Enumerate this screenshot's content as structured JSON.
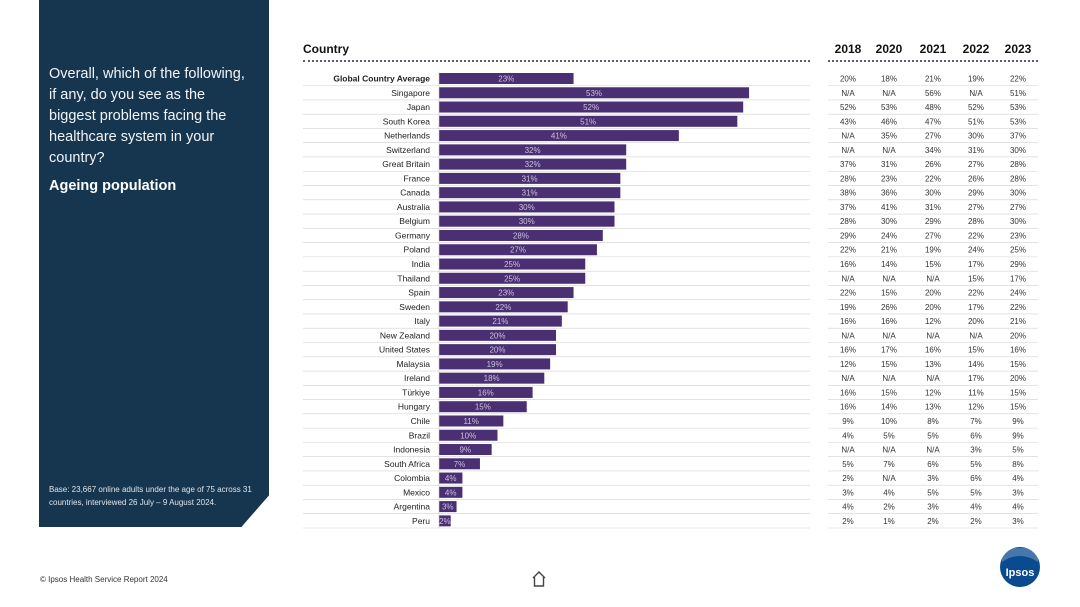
{
  "sidebar": {
    "question": "Overall, which of the following, if any, do you see as the biggest problems facing the healthcare system in your country?",
    "topic": "Ageing population",
    "base": "Base: 23,667 online adults under the age of 75 across 31 countries, interviewed 26 July – 9 August 2024."
  },
  "footer": {
    "source": "© Ipsos Health Service Report 2024",
    "logo": "Ipsos"
  },
  "icons": {
    "home": "home-icon"
  },
  "colors": {
    "sidebar": "#163650",
    "bar": "#4b2f73",
    "bar_text": "#c9c2db"
  },
  "chart_data": {
    "type": "bar",
    "orientation": "horizontal",
    "title": "Ageing population",
    "column_header": "Country",
    "categories": [
      "Global Country Average",
      "Singapore",
      "Japan",
      "South Korea",
      "Netherlands",
      "Switzerland",
      "Great Britain",
      "France",
      "Canada",
      "Australia",
      "Belgium",
      "Germany",
      "Poland",
      "India",
      "Thailand",
      "Spain",
      "Sweden",
      "Italy",
      "New Zealand",
      "United States",
      "Malaysia",
      "Ireland",
      "Türkiye",
      "Hungary",
      "Chile",
      "Brazil",
      "Indonesia",
      "South Africa",
      "Colombia",
      "Mexico",
      "Argentina",
      "Peru"
    ],
    "values": [
      23,
      53,
      52,
      51,
      41,
      32,
      32,
      31,
      31,
      30,
      30,
      28,
      27,
      25,
      25,
      23,
      22,
      21,
      20,
      20,
      19,
      18,
      16,
      15,
      11,
      10,
      9,
      7,
      4,
      4,
      3,
      2
    ],
    "value_labels": [
      "23%",
      "53%",
      "52%",
      "51%",
      "41%",
      "32%",
      "32%",
      "31%",
      "31%",
      "30%",
      "30%",
      "28%",
      "27%",
      "25%",
      "25%",
      "23%",
      "22%",
      "21%",
      "20%",
      "20%",
      "19%",
      "18%",
      "16%",
      "15%",
      "11%",
      "10%",
      "9%",
      "7%",
      "4%",
      "4%",
      "3%",
      "2%"
    ],
    "xlim": [
      0,
      100
    ],
    "unit": "%",
    "table": {
      "columns": [
        "2018",
        "2020",
        "2021",
        "2022",
        "2023"
      ],
      "rows": [
        [
          "20%",
          "18%",
          "21%",
          "19%",
          "22%"
        ],
        [
          "N/A",
          "N/A",
          "56%",
          "N/A",
          "51%"
        ],
        [
          "52%",
          "53%",
          "48%",
          "52%",
          "53%"
        ],
        [
          "43%",
          "46%",
          "47%",
          "51%",
          "53%"
        ],
        [
          "N/A",
          "35%",
          "27%",
          "30%",
          "37%"
        ],
        [
          "N/A",
          "N/A",
          "34%",
          "31%",
          "30%"
        ],
        [
          "37%",
          "31%",
          "26%",
          "27%",
          "28%"
        ],
        [
          "28%",
          "23%",
          "22%",
          "26%",
          "28%"
        ],
        [
          "38%",
          "36%",
          "30%",
          "29%",
          "30%"
        ],
        [
          "37%",
          "41%",
          "31%",
          "27%",
          "27%"
        ],
        [
          "28%",
          "30%",
          "29%",
          "28%",
          "30%"
        ],
        [
          "29%",
          "24%",
          "27%",
          "22%",
          "23%"
        ],
        [
          "22%",
          "21%",
          "19%",
          "24%",
          "25%"
        ],
        [
          "16%",
          "14%",
          "15%",
          "17%",
          "29%"
        ],
        [
          "N/A",
          "N/A",
          "N/A",
          "15%",
          "17%"
        ],
        [
          "22%",
          "15%",
          "20%",
          "22%",
          "24%"
        ],
        [
          "19%",
          "26%",
          "20%",
          "17%",
          "22%"
        ],
        [
          "16%",
          "16%",
          "12%",
          "20%",
          "21%"
        ],
        [
          "N/A",
          "N/A",
          "N/A",
          "N/A",
          "20%"
        ],
        [
          "16%",
          "17%",
          "16%",
          "15%",
          "16%"
        ],
        [
          "12%",
          "15%",
          "13%",
          "14%",
          "15%"
        ],
        [
          "N/A",
          "N/A",
          "N/A",
          "17%",
          "20%"
        ],
        [
          "16%",
          "15%",
          "12%",
          "11%",
          "15%"
        ],
        [
          "16%",
          "14%",
          "13%",
          "12%",
          "15%"
        ],
        [
          "9%",
          "10%",
          "8%",
          "7%",
          "9%"
        ],
        [
          "4%",
          "5%",
          "5%",
          "6%",
          "9%"
        ],
        [
          "N/A",
          "N/A",
          "N/A",
          "3%",
          "5%"
        ],
        [
          "5%",
          "7%",
          "6%",
          "5%",
          "8%"
        ],
        [
          "2%",
          "N/A",
          "3%",
          "6%",
          "4%"
        ],
        [
          "3%",
          "4%",
          "5%",
          "5%",
          "3%"
        ],
        [
          "4%",
          "2%",
          "3%",
          "4%",
          "4%"
        ],
        [
          "2%",
          "1%",
          "2%",
          "2%",
          "3%"
        ]
      ]
    }
  }
}
